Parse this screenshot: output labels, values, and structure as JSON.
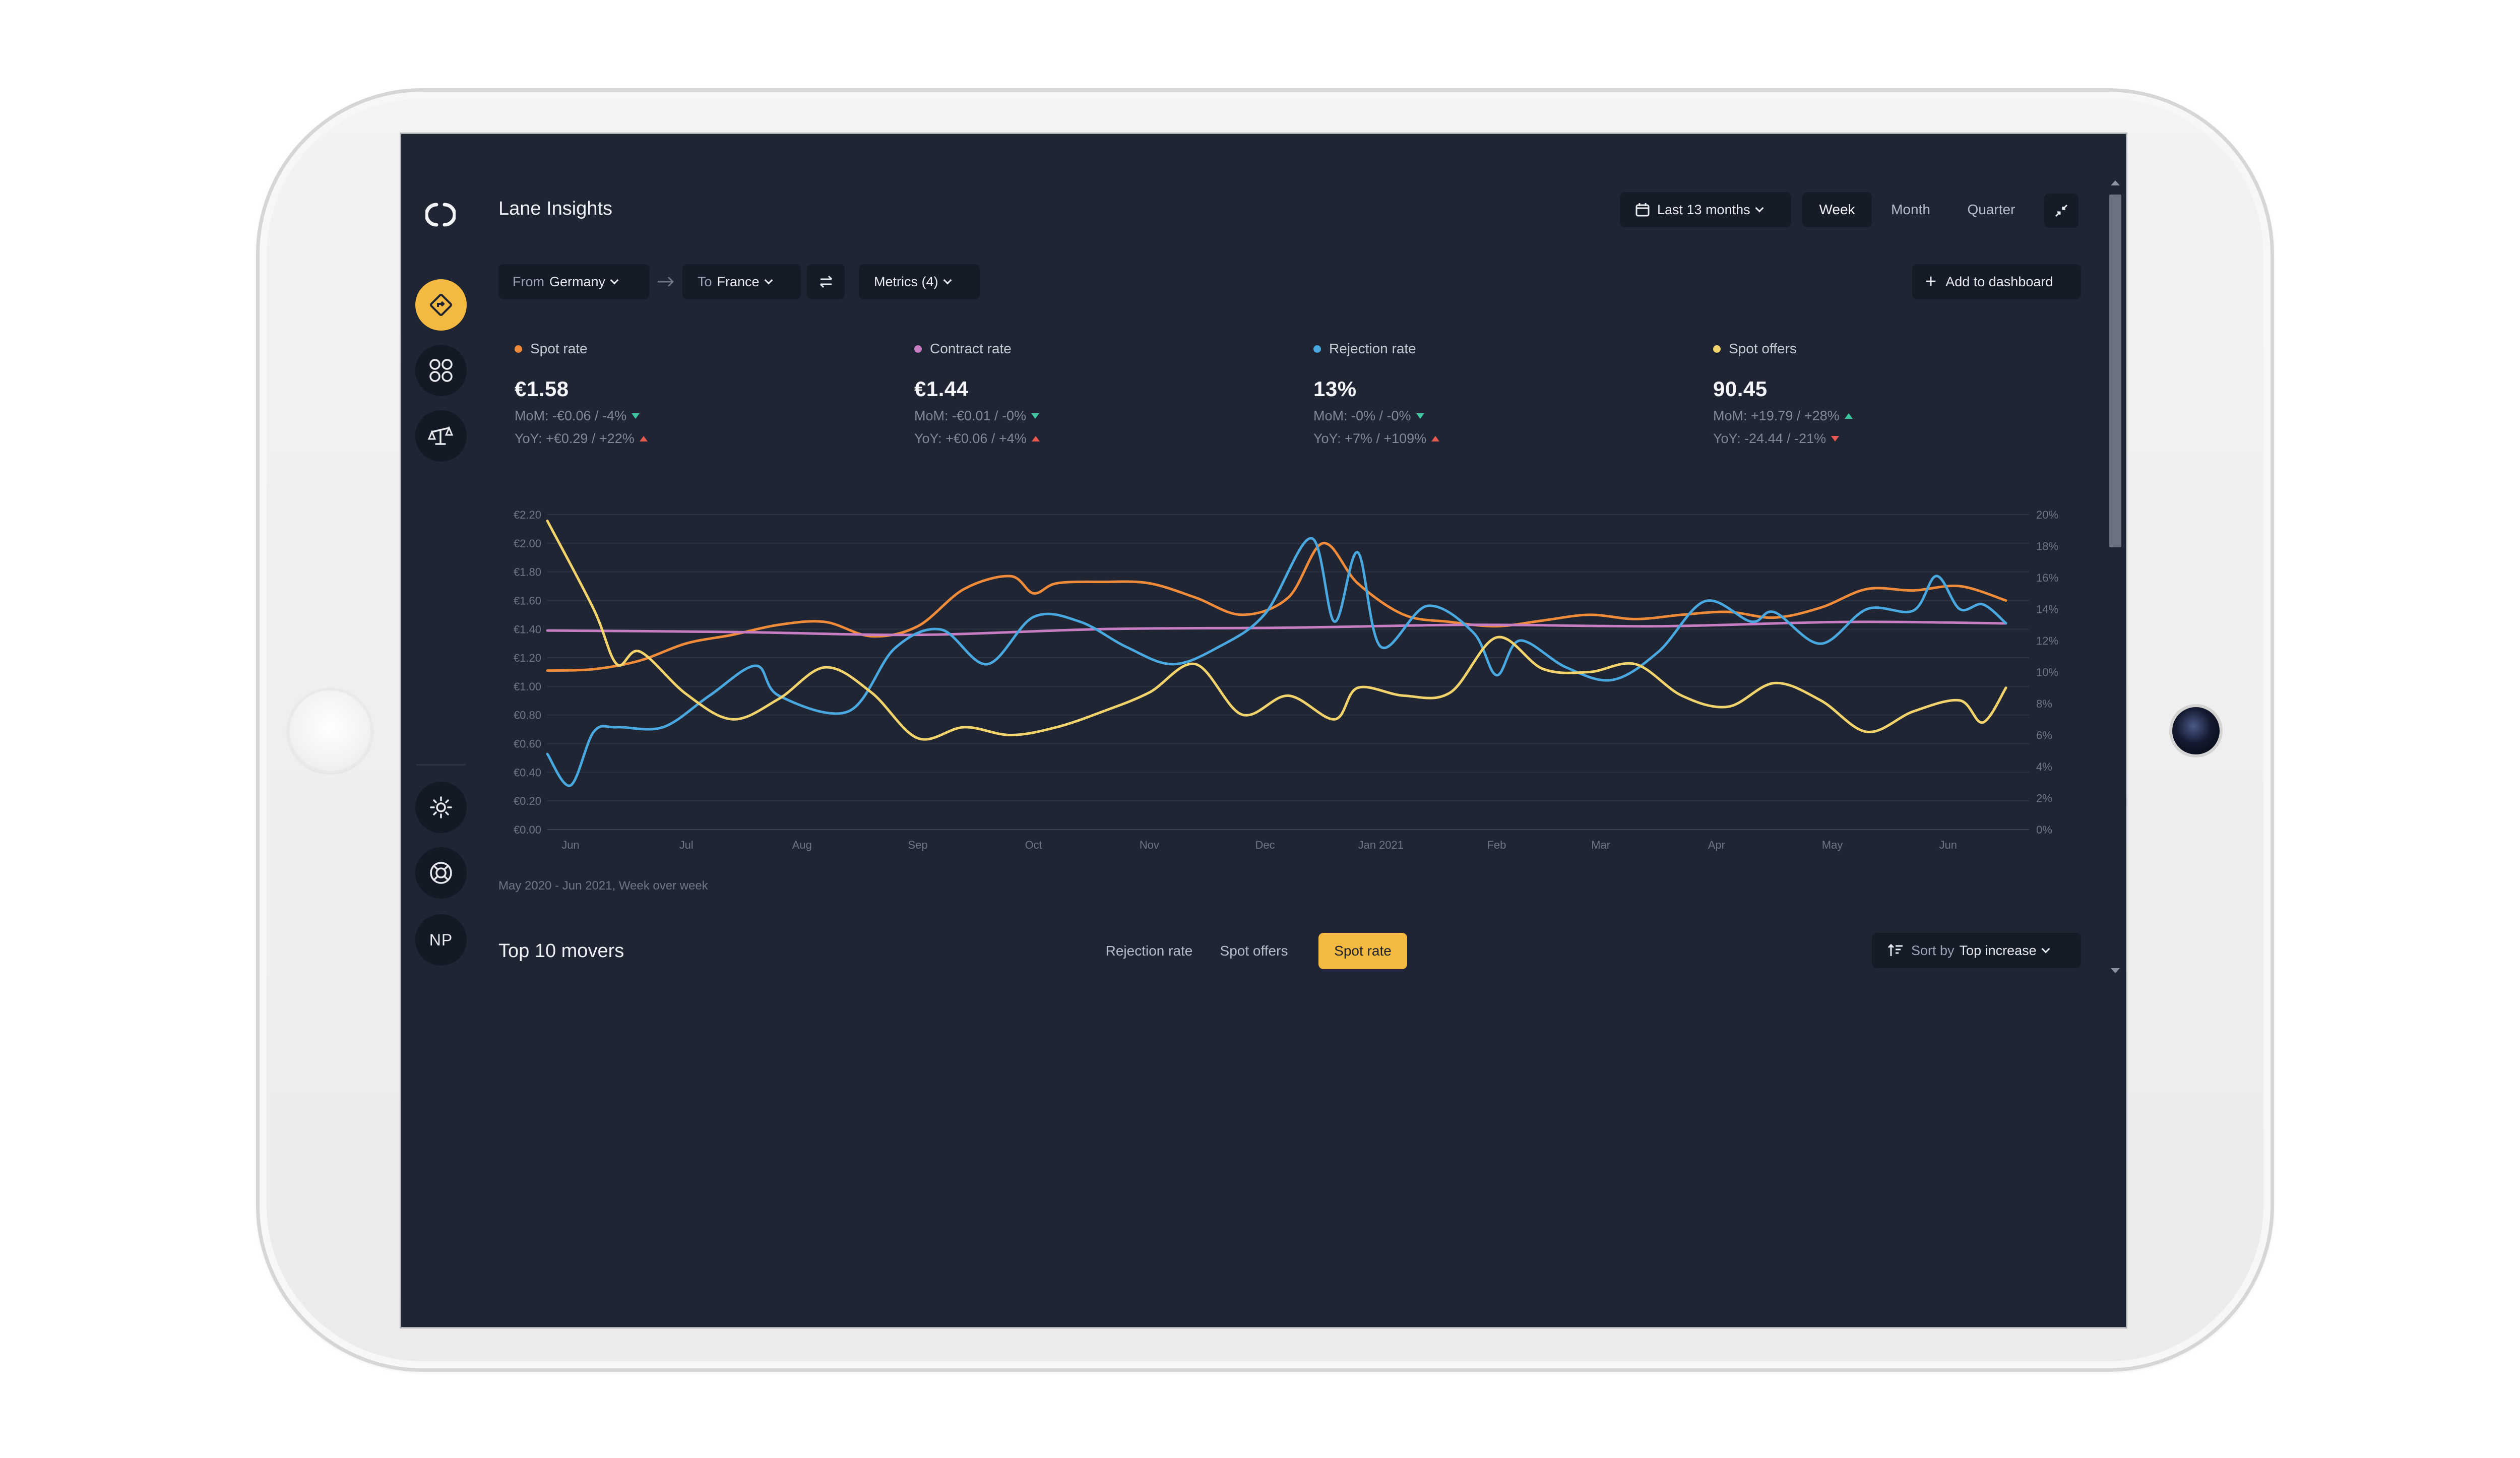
{
  "app": {
    "title": "Lane Insights",
    "accent_color": "#f4b940",
    "background_color": "#1f2533"
  },
  "sidebar": {
    "items": [
      {
        "name": "logo-icon"
      },
      {
        "name": "lane-insights-icon",
        "active": true
      },
      {
        "name": "apps-grid-icon"
      },
      {
        "name": "scale-icon"
      },
      {
        "name": "theme-sun-icon"
      },
      {
        "name": "support-lifebuoy-icon"
      }
    ],
    "avatar_initials": "NP"
  },
  "header": {
    "date_range_label": "Last 13 months",
    "granularity_tabs": [
      "Week",
      "Month",
      "Quarter"
    ],
    "granularity_selected": "Week"
  },
  "filters": {
    "from_prefix": "From",
    "from_value": "Germany",
    "to_prefix": "To",
    "to_value": "France",
    "metrics_label": "Metrics (4)",
    "add_dashboard_label": "Add to dashboard"
  },
  "metrics": [
    {
      "name": "Spot rate",
      "color": "#f08b3a",
      "value": "€1.58",
      "mom": "MoM: -€0.06 / -4%",
      "mom_dir": "down",
      "mom_color": "#3cc9a0",
      "yoy": "YoY: +€0.29 / +22%",
      "yoy_dir": "up",
      "yoy_color": "#e85a4f"
    },
    {
      "name": "Contract rate",
      "color": "#c77dc2",
      "value": "€1.44",
      "mom": "MoM: -€0.01 / -0%",
      "mom_dir": "down",
      "mom_color": "#3cc9a0",
      "yoy": "YoY: +€0.06 / +4%",
      "yoy_dir": "up",
      "yoy_color": "#e85a4f"
    },
    {
      "name": "Rejection rate",
      "color": "#4aa8e0",
      "value": "13%",
      "mom": "MoM: -0% / -0%",
      "mom_dir": "down",
      "mom_color": "#3cc9a0",
      "yoy": "YoY: +7% / +109%",
      "yoy_dir": "up",
      "yoy_color": "#e85a4f"
    },
    {
      "name": "Spot offers",
      "color": "#f3d36b",
      "value": "90.45",
      "mom": "MoM: +19.79 / +28%",
      "mom_dir": "up",
      "mom_color": "#3cc9a0",
      "yoy": "YoY: -24.44 / -21%",
      "yoy_dir": "down",
      "yoy_color": "#e85a4f"
    }
  ],
  "chart_data": {
    "type": "line",
    "x_labels": [
      "Jun",
      "Jul",
      "Aug",
      "Sep",
      "Oct",
      "Nov",
      "Dec",
      "Jan 2021",
      "Feb",
      "Mar",
      "Apr",
      "May",
      "Jun"
    ],
    "x_label_positions_week": [
      2,
      12,
      22,
      32,
      42,
      52,
      62,
      72,
      82,
      91,
      101,
      111,
      121
    ],
    "x_range_week": [
      0,
      128
    ],
    "y_left_ticks": [
      "€0.00",
      "€0.20",
      "€0.40",
      "€0.60",
      "€0.80",
      "€1.00",
      "€1.20",
      "€1.40",
      "€1.60",
      "€1.80",
      "€2.00",
      "€2.20"
    ],
    "y_left_range": [
      0,
      2.2
    ],
    "y_right_ticks": [
      "0%",
      "2%",
      "4%",
      "6%",
      "8%",
      "10%",
      "12%",
      "14%",
      "16%",
      "18%",
      "20%"
    ],
    "y_right_range": [
      0,
      20
    ],
    "grid": true,
    "caption": "May 2020 - Jun 2021, Week over week",
    "series": [
      {
        "name": "Spot rate",
        "axis": "left",
        "color": "#f08b3a",
        "points": [
          [
            0,
            1.11
          ],
          [
            4,
            1.12
          ],
          [
            8,
            1.18
          ],
          [
            12,
            1.3
          ],
          [
            16,
            1.36
          ],
          [
            20,
            1.43
          ],
          [
            24,
            1.45
          ],
          [
            28,
            1.35
          ],
          [
            32,
            1.42
          ],
          [
            36,
            1.68
          ],
          [
            40,
            1.77
          ],
          [
            42,
            1.65
          ],
          [
            44,
            1.72
          ],
          [
            48,
            1.73
          ],
          [
            52,
            1.72
          ],
          [
            56,
            1.62
          ],
          [
            60,
            1.5
          ],
          [
            64,
            1.62
          ],
          [
            67,
            2.0
          ],
          [
            70,
            1.72
          ],
          [
            74,
            1.5
          ],
          [
            78,
            1.45
          ],
          [
            82,
            1.42
          ],
          [
            86,
            1.46
          ],
          [
            90,
            1.5
          ],
          [
            94,
            1.47
          ],
          [
            98,
            1.5
          ],
          [
            102,
            1.52
          ],
          [
            106,
            1.48
          ],
          [
            110,
            1.55
          ],
          [
            114,
            1.68
          ],
          [
            118,
            1.67
          ],
          [
            122,
            1.7
          ],
          [
            126,
            1.6
          ]
        ]
      },
      {
        "name": "Contract rate",
        "axis": "left",
        "color": "#c77dc2",
        "points": [
          [
            0,
            1.39
          ],
          [
            16,
            1.38
          ],
          [
            32,
            1.36
          ],
          [
            48,
            1.4
          ],
          [
            64,
            1.41
          ],
          [
            80,
            1.43
          ],
          [
            96,
            1.42
          ],
          [
            112,
            1.45
          ],
          [
            126,
            1.44
          ]
        ]
      },
      {
        "name": "Rejection rate",
        "axis": "right",
        "color": "#4aa8e0",
        "points": [
          [
            0,
            4.8
          ],
          [
            2,
            2.8
          ],
          [
            4,
            6.2
          ],
          [
            6,
            6.5
          ],
          [
            10,
            6.5
          ],
          [
            14,
            8.5
          ],
          [
            18,
            10.4
          ],
          [
            20,
            8.5
          ],
          [
            26,
            7.5
          ],
          [
            30,
            11.5
          ],
          [
            34,
            12.7
          ],
          [
            38,
            10.5
          ],
          [
            42,
            13.5
          ],
          [
            46,
            13.2
          ],
          [
            50,
            11.6
          ],
          [
            54,
            10.5
          ],
          [
            58,
            11.6
          ],
          [
            62,
            13.7
          ],
          [
            66,
            18.5
          ],
          [
            68,
            13.2
          ],
          [
            70,
            17.6
          ],
          [
            72,
            11.6
          ],
          [
            76,
            14.2
          ],
          [
            80,
            12.5
          ],
          [
            82,
            9.8
          ],
          [
            84,
            12
          ],
          [
            88,
            10.3
          ],
          [
            92,
            9.5
          ],
          [
            96,
            11.3
          ],
          [
            100,
            14.5
          ],
          [
            104,
            13.2
          ],
          [
            106,
            13.8
          ],
          [
            110,
            11.8
          ],
          [
            114,
            14
          ],
          [
            118,
            13.9
          ],
          [
            120,
            16.1
          ],
          [
            122,
            14
          ],
          [
            124,
            14.3
          ],
          [
            126,
            13.1
          ]
        ]
      },
      {
        "name": "Spot offers",
        "axis": "right",
        "color": "#f3d36b",
        "points": [
          [
            0,
            19.6
          ],
          [
            4,
            14
          ],
          [
            6,
            10.5
          ],
          [
            8,
            11.3
          ],
          [
            12,
            8.6
          ],
          [
            16,
            7
          ],
          [
            20,
            8.3
          ],
          [
            24,
            10.3
          ],
          [
            28,
            8.7
          ],
          [
            32,
            5.8
          ],
          [
            36,
            6.5
          ],
          [
            40,
            6
          ],
          [
            44,
            6.5
          ],
          [
            48,
            7.5
          ],
          [
            52,
            8.7
          ],
          [
            56,
            10.5
          ],
          [
            60,
            7.3
          ],
          [
            64,
            8.5
          ],
          [
            68,
            7
          ],
          [
            70,
            9
          ],
          [
            74,
            8.5
          ],
          [
            78,
            8.7
          ],
          [
            82,
            12.2
          ],
          [
            86,
            10.2
          ],
          [
            90,
            10
          ],
          [
            94,
            10.5
          ],
          [
            98,
            8.5
          ],
          [
            102,
            7.8
          ],
          [
            106,
            9.3
          ],
          [
            110,
            8.2
          ],
          [
            114,
            6.2
          ],
          [
            118,
            7.5
          ],
          [
            122,
            8.2
          ],
          [
            124,
            6.8
          ],
          [
            126,
            9
          ]
        ]
      }
    ]
  },
  "movers": {
    "title": "Top 10 movers",
    "tabs": [
      "Rejection rate",
      "Spot offers",
      "Spot rate"
    ],
    "selected_tab": "Spot rate",
    "sort_prefix": "Sort by",
    "sort_value": "Top increase"
  }
}
